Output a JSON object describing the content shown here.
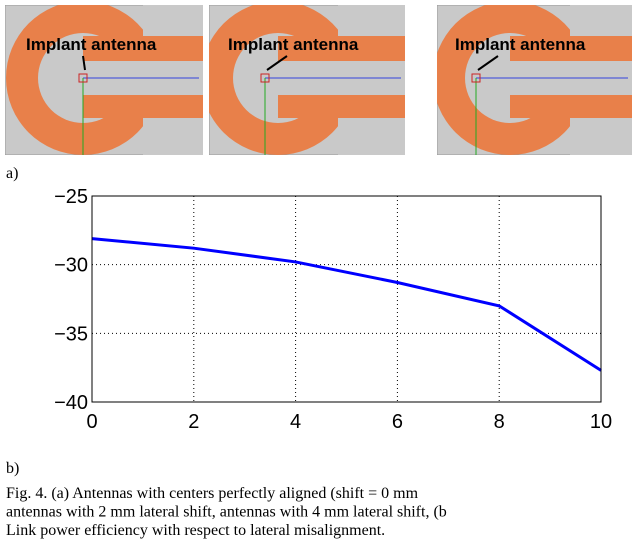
{
  "figure": {
    "panels": [
      {
        "label": "Implant antenna"
      },
      {
        "label": "Implant antenna"
      },
      {
        "label": "Implant antenna"
      }
    ],
    "panel_labels": [
      "a)",
      "b)"
    ],
    "caption": [
      "Fig. 4.   (a) Antennas with centers perfectly aligned (shift = 0 mm",
      "antennas with 2 mm lateral shift, antennas with 4 mm lateral shift, (b",
      "Link power efficiency with respect to lateral misalignment."
    ]
  },
  "chart_data": {
    "type": "line",
    "x": [
      0,
      2,
      4,
      6,
      8,
      10
    ],
    "series": [
      {
        "color": "#0000ff",
        "values": [
          -28.1,
          -28.8,
          -29.8,
          -31.3,
          -33.0,
          -37.7
        ]
      }
    ],
    "xlim": [
      0,
      10
    ],
    "xticks": [
      0,
      2,
      4,
      6,
      8,
      10
    ],
    "ylim": [
      -40,
      -25
    ],
    "yticks": [
      {
        "value": -40,
        "label": "−40"
      },
      {
        "value": -35,
        "label": "−35"
      },
      {
        "value": -30,
        "label": "−30"
      },
      {
        "value": -25,
        "label": "−25"
      }
    ],
    "grid": true
  }
}
